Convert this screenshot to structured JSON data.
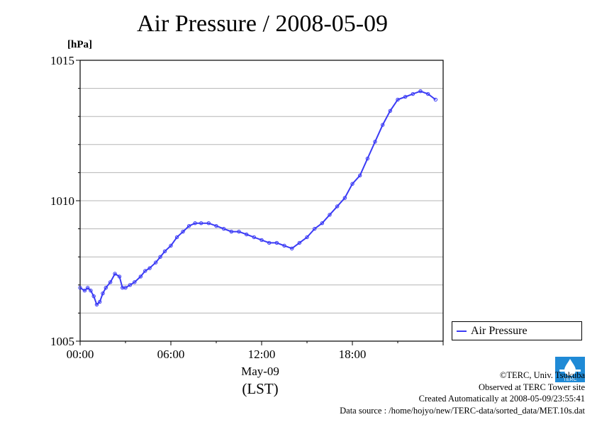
{
  "title": "Air Pressure / 2008-05-09",
  "unit": "[hPa]",
  "x_axis": {
    "date_label": "May-09",
    "tz_label": "(LST)"
  },
  "legend": {
    "label": "Air Pressure"
  },
  "credits": {
    "copyright": "©TERC, Univ. Tsukuba",
    "observed": "Observed at TERC Tower site",
    "created": "Created Automatically at 2008-05-09/23:55:41",
    "source": "Data source : /home/hojyo/new/TERC-data/sorted_data/MET.10s.dat"
  },
  "logo": {
    "text": "TERC",
    "color": "#1f8ad6"
  },
  "chart_data": {
    "type": "line",
    "title": "Air Pressure / 2008-05-09",
    "ylabel": "[hPa]",
    "xlabel": "May-09 (LST)",
    "xlim": [
      0,
      24
    ],
    "ylim": [
      1005,
      1015
    ],
    "x_ticks": [
      0,
      6,
      12,
      18
    ],
    "x_tick_labels": [
      "00:00",
      "06:00",
      "12:00",
      "18:00"
    ],
    "y_ticks": [
      1005,
      1010,
      1015
    ],
    "y_tick_labels": [
      "1005",
      "1010",
      "1015"
    ],
    "grid": "horizontal every 1 hPa",
    "legend_position": "right, below plot area",
    "series": [
      {
        "name": "Air Pressure",
        "color": "#3b3bf5",
        "x": [
          0.0,
          0.3,
          0.5,
          0.7,
          0.9,
          1.1,
          1.3,
          1.5,
          1.7,
          2.0,
          2.3,
          2.6,
          2.8,
          3.0,
          3.3,
          3.6,
          4.0,
          4.3,
          4.6,
          5.0,
          5.3,
          5.6,
          6.0,
          6.4,
          6.8,
          7.2,
          7.6,
          8.0,
          8.5,
          9.0,
          9.5,
          10.0,
          10.5,
          11.0,
          11.5,
          12.0,
          12.5,
          13.0,
          13.5,
          14.0,
          14.5,
          15.0,
          15.5,
          16.0,
          16.5,
          17.0,
          17.5,
          18.0,
          18.5,
          19.0,
          19.5,
          20.0,
          20.5,
          21.0,
          21.5,
          22.0,
          22.5,
          23.0,
          23.5
        ],
        "values": [
          1006.9,
          1006.8,
          1006.9,
          1006.8,
          1006.6,
          1006.3,
          1006.4,
          1006.7,
          1006.9,
          1007.1,
          1007.4,
          1007.3,
          1006.9,
          1006.9,
          1007.0,
          1007.1,
          1007.3,
          1007.5,
          1007.6,
          1007.8,
          1008.0,
          1008.2,
          1008.4,
          1008.7,
          1008.9,
          1009.1,
          1009.2,
          1009.2,
          1009.2,
          1009.1,
          1009.0,
          1008.9,
          1008.9,
          1008.8,
          1008.7,
          1008.6,
          1008.5,
          1008.5,
          1008.4,
          1008.3,
          1008.5,
          1008.7,
          1009.0,
          1009.2,
          1009.5,
          1009.8,
          1010.1,
          1010.6,
          1010.9,
          1011.5,
          1012.1,
          1012.7,
          1013.2,
          1013.6,
          1013.7,
          1013.8,
          1013.9,
          1013.8,
          1013.6
        ]
      }
    ]
  }
}
